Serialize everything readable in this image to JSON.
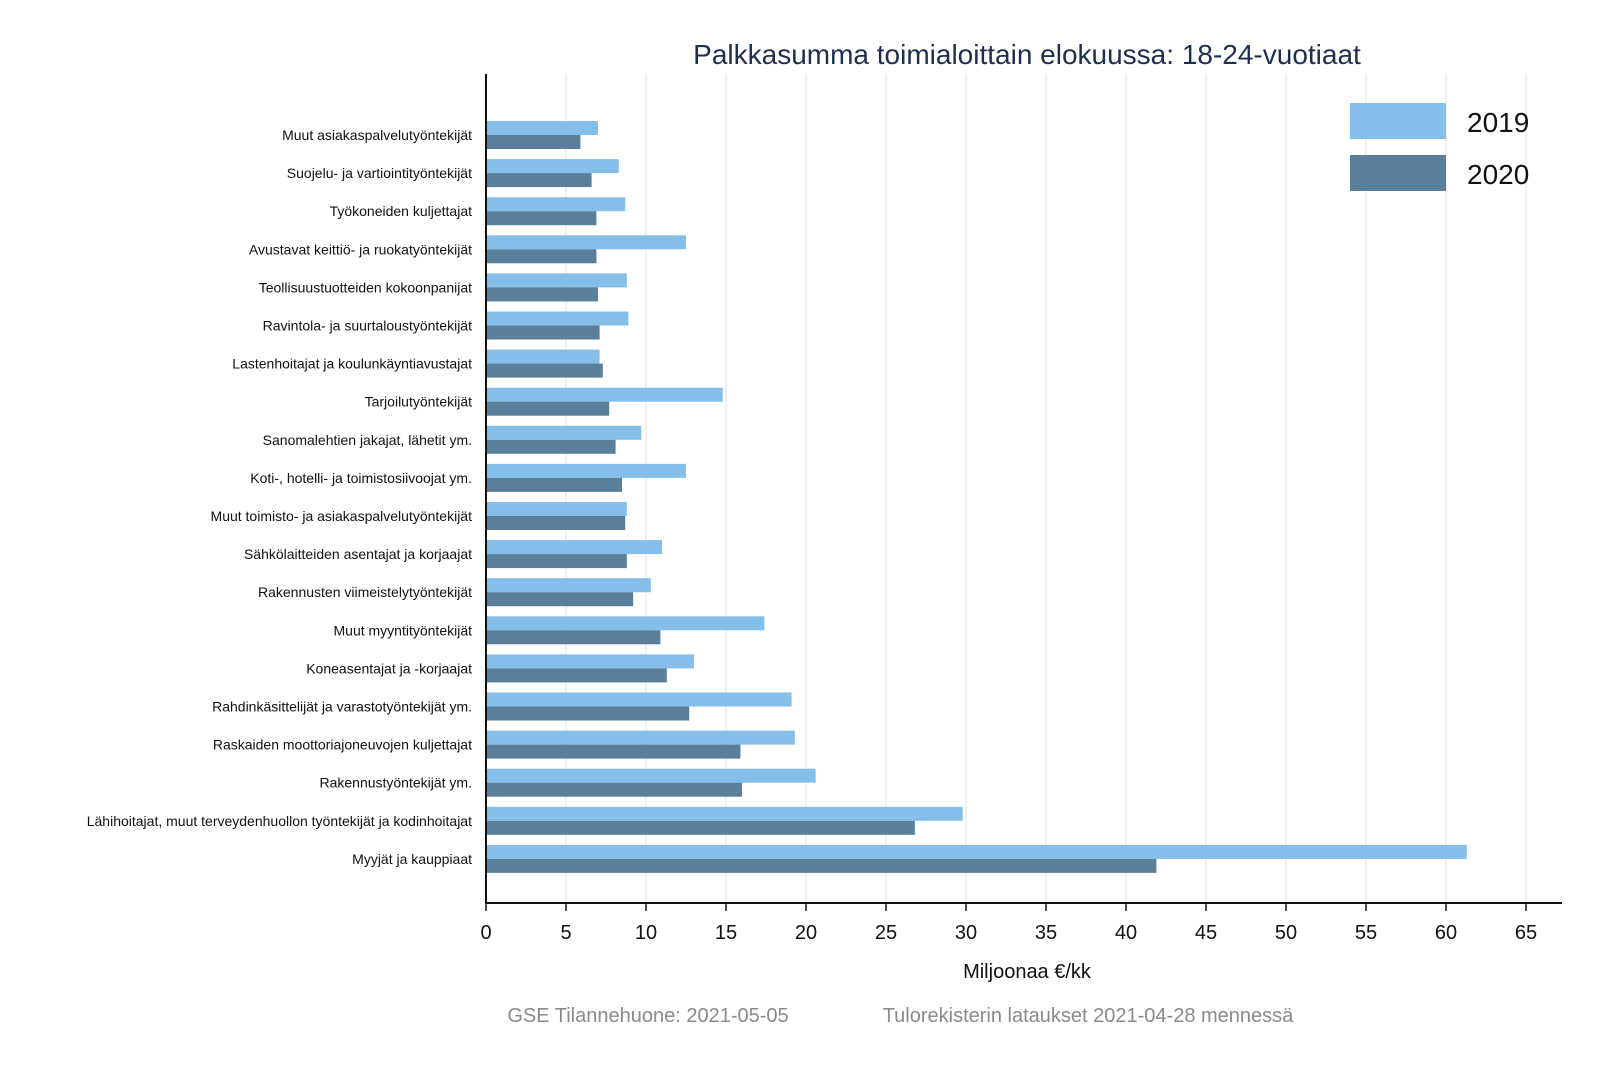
{
  "chart_data": {
    "type": "bar",
    "orientation": "horizontal",
    "title": "Palkkasumma toimialoittain elokuussa: 18-24-vuotiaat",
    "xlabel": "Miljoonaa €/kk",
    "ylabel": "",
    "xlim": [
      0,
      67
    ],
    "xticks": [
      0,
      5,
      10,
      15,
      20,
      25,
      30,
      35,
      40,
      45,
      50,
      55,
      60,
      65
    ],
    "grid": "vertical",
    "legend_position": "top-right",
    "categories": [
      "Muut asiakaspalvelutyöntekijät",
      "Suojelu- ja vartiointityöntekijät",
      "Työkoneiden kuljettajat",
      "Avustavat keittiö- ja ruokatyöntekijät",
      "Teollisuustuotteiden kokoonpanijat",
      "Ravintola- ja suurtaloustyöntekijät",
      "Lastenhoitajat ja koulunkäyntiavustajat",
      "Tarjoilutyöntekijät",
      "Sanomalehtien jakajat, lähetit ym.",
      "Koti-, hotelli- ja toimistosiivoojat ym.",
      "Muut toimisto- ja asiakaspalvelutyöntekijät",
      "Sähkölaitteiden asentajat ja korjaajat",
      "Rakennusten viimeistelytyöntekijät",
      "Muut myyntityöntekijät",
      "Koneasentajat ja -korjaajat",
      "Rahdinkäsittelijät ja varastotyöntekijät ym.",
      "Raskaiden moottoriajoneuvojen kuljettajat",
      "Rakennustyöntekijät ym.",
      "Lähihoitajat, muut terveydenhuollon työntekijät ja kodinhoitajat",
      "Myyjät ja kauppiaat"
    ],
    "series": [
      {
        "name": "2019",
        "color": "#85bfe9",
        "values": [
          7.0,
          8.3,
          8.7,
          12.5,
          8.8,
          8.9,
          7.1,
          14.8,
          9.7,
          12.5,
          8.8,
          11.0,
          10.3,
          17.4,
          13.0,
          19.1,
          19.3,
          20.6,
          29.8,
          61.3
        ]
      },
      {
        "name": "2020",
        "color": "#5a7f9a",
        "values": [
          5.9,
          6.6,
          6.9,
          6.9,
          7.0,
          7.1,
          7.3,
          7.7,
          8.1,
          8.5,
          8.7,
          8.8,
          9.2,
          10.9,
          11.3,
          12.7,
          15.9,
          16.0,
          26.8,
          41.9
        ]
      }
    ]
  },
  "footer": {
    "left": "GSE Tilannehuone: 2021-05-05",
    "right": "Tulorekisterin lataukset 2021-04-28 mennessä"
  }
}
